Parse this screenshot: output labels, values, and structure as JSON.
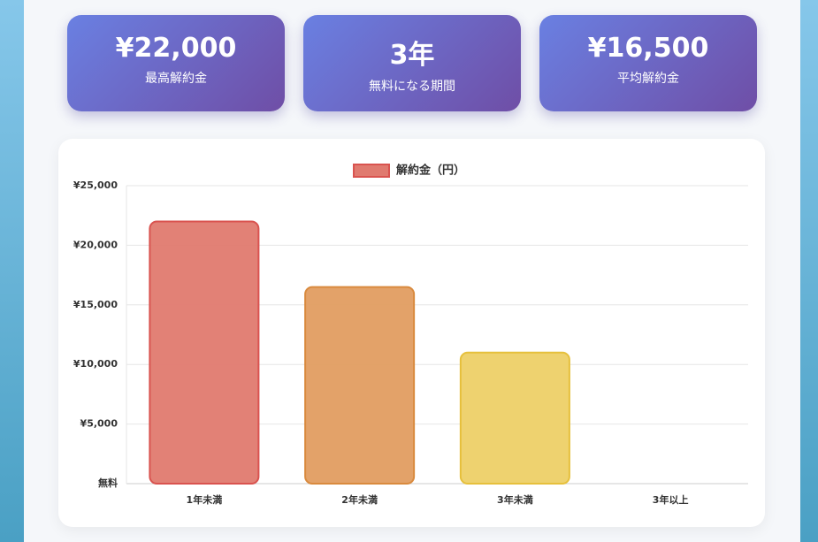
{
  "cards": [
    {
      "value": "¥22,000",
      "label": "最高解約金"
    },
    {
      "value": "3年",
      "label": "無料になる期間"
    },
    {
      "value": "¥16,500",
      "label": "平均解約金"
    }
  ],
  "chart_data": {
    "type": "bar",
    "categories": [
      "1年未満",
      "2年未満",
      "3年未満",
      "3年以上"
    ],
    "series": [
      {
        "name": "解約金（円）",
        "values": [
          22000,
          16500,
          11000,
          0
        ],
        "colors": [
          "#e07a6f",
          "#e29d61",
          "#edd067",
          "#e07a6f"
        ],
        "border_colors": [
          "#d9534f",
          "#d98a3e",
          "#e6c03c",
          "#d9534f"
        ]
      }
    ],
    "ylim": [
      0,
      25000
    ],
    "yticks": [
      {
        "value": 0,
        "label": "無料"
      },
      {
        "value": 5000,
        "label": "¥5,000"
      },
      {
        "value": 10000,
        "label": "¥10,000"
      },
      {
        "value": 15000,
        "label": "¥15,000"
      },
      {
        "value": 20000,
        "label": "¥20,000"
      },
      {
        "value": 25000,
        "label": "¥25,000"
      }
    ],
    "grid": true,
    "legend": "top"
  }
}
